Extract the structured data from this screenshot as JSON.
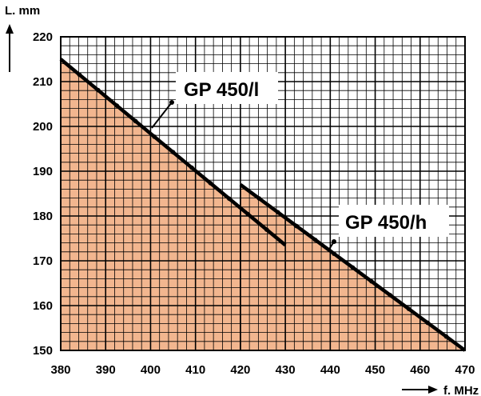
{
  "chart_data": {
    "type": "area",
    "xlabel": "f. MHz",
    "ylabel": "L. mm",
    "xlim": [
      380,
      470
    ],
    "ylim": [
      150,
      220
    ],
    "x_ticks": [
      "380",
      "390",
      "400",
      "410",
      "420",
      "430",
      "440",
      "450",
      "460",
      "470"
    ],
    "y_ticks": [
      "150",
      "160",
      "170",
      "180",
      "190",
      "200",
      "210",
      "220"
    ],
    "grid": true,
    "series": [
      {
        "name": "GP 450/l",
        "x": [
          380,
          430
        ],
        "y": [
          215,
          173.5
        ]
      },
      {
        "name": "GP 450/h",
        "x": [
          420,
          470
        ],
        "y": [
          187,
          150
        ]
      }
    ],
    "colors": {
      "fill": "#f2b68f",
      "grid": "#000000",
      "line": "#000000"
    }
  }
}
